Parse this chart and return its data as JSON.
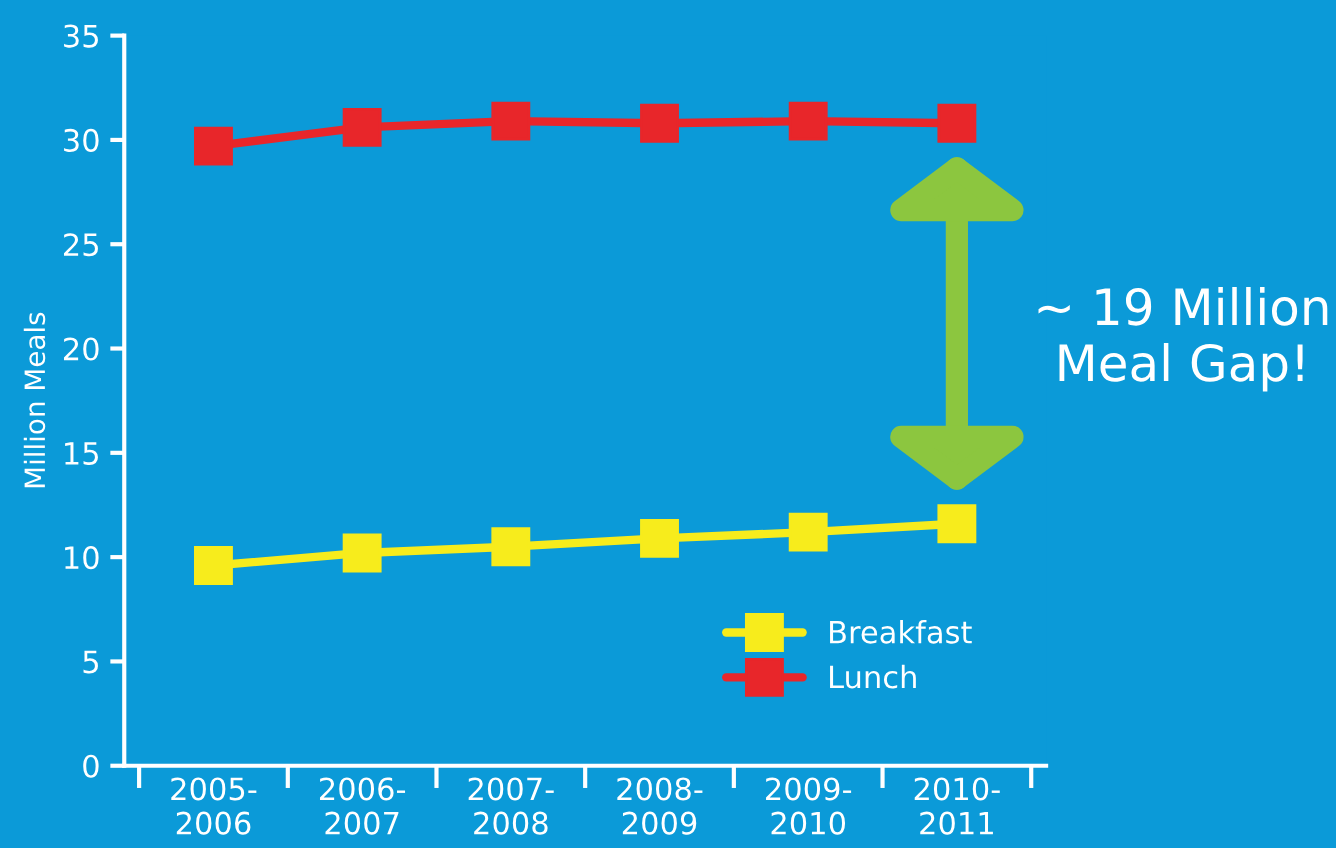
{
  "chart_data": {
    "type": "line",
    "ylabel": "Million Meals",
    "categories": [
      "2005-\n2006",
      "2006-\n2007",
      "2007-\n2008",
      "2008-\n2009",
      "2009-\n2010",
      "2010-\n2011"
    ],
    "series": [
      {
        "name": "Breakfast",
        "color": "#f7ec1c",
        "values": [
          9.6,
          10.2,
          10.5,
          10.9,
          11.2,
          11.6
        ]
      },
      {
        "name": "Lunch",
        "color": "#e8262a",
        "values": [
          29.7,
          30.6,
          30.9,
          30.8,
          30.9,
          30.8
        ]
      }
    ],
    "ylim": [
      0,
      35
    ],
    "yticks": [
      0,
      5,
      10,
      15,
      20,
      25,
      30,
      35
    ],
    "annotations": [
      "~ 19 Million\nMeal Gap!"
    ],
    "grid": false,
    "legend": "bottom right",
    "marker": "square",
    "line_style": "solid"
  }
}
